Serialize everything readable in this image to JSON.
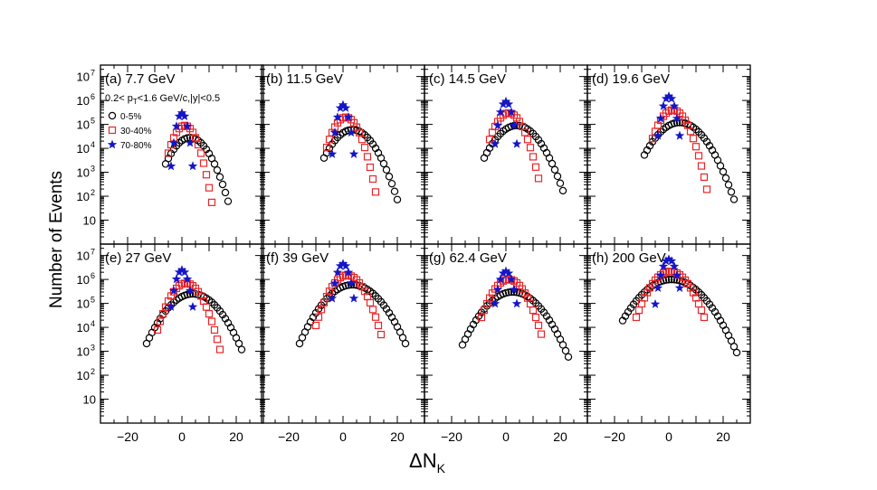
{
  "chart_data": {
    "type": "scatter",
    "xlabel_main": "ΔN",
    "xlabel_sub": "K",
    "ylabel": "Number of Events",
    "y_scale": "log",
    "ylim": [
      1,
      30000000
    ],
    "xlim": [
      -30,
      30
    ],
    "x_ticks": [
      "−20",
      "0",
      "20"
    ],
    "y_ticks_tens": "10",
    "y_ticks_exp": [
      "2",
      "3",
      "4",
      "5",
      "6",
      "7"
    ],
    "kinematic_cut_text": {
      "a": "0.2< p",
      "sub": "T",
      "b": "<1.6 GeV/c,|y|<0.5"
    },
    "legend": [
      {
        "label": "0-5%",
        "marker": "circle",
        "color": "#000000"
      },
      {
        "label": "30-40%",
        "marker": "square",
        "color": "#e8262a"
      },
      {
        "label": "70-80%",
        "marker": "star",
        "color": "#1515c8"
      }
    ],
    "panels": [
      {
        "label": "(a) 7.7 GeV",
        "series": [
          {
            "name": "0-5%",
            "mean": 3.0,
            "sigma": 4.0,
            "peak": 28000,
            "xmin": -6,
            "xmax": 17
          },
          {
            "name": "30-40%",
            "mean": 1.0,
            "sigma": 2.6,
            "peak": 90000,
            "xmin": -5,
            "xmax": 11
          },
          {
            "name": "70-80%",
            "mean": 0.0,
            "sigma": 1.25,
            "peak": 300000,
            "xmin": -4,
            "xmax": 4
          }
        ]
      },
      {
        "label": "(b) 11.5 GeV",
        "series": [
          {
            "name": "0-5%",
            "mean": 3.5,
            "sigma": 4.5,
            "peak": 60000,
            "xmin": -7,
            "xmax": 20
          },
          {
            "name": "30-40%",
            "mean": 1.0,
            "sigma": 2.9,
            "peak": 200000,
            "xmin": -6,
            "xmax": 12
          },
          {
            "name": "70-80%",
            "mean": 0.0,
            "sigma": 1.3,
            "peak": 650000,
            "xmin": -4,
            "xmax": 4
          }
        ]
      },
      {
        "label": "(c) 14.5 GeV",
        "series": [
          {
            "name": "0-5%",
            "mean": 4.0,
            "sigma": 4.8,
            "peak": 90000,
            "xmin": -8,
            "xmax": 21
          },
          {
            "name": "30-40%",
            "mean": 1.0,
            "sigma": 3.1,
            "peak": 300000,
            "xmin": -6,
            "xmax": 12
          },
          {
            "name": "70-80%",
            "mean": 0.0,
            "sigma": 1.4,
            "peak": 900000,
            "xmin": -4,
            "xmax": 4
          }
        ]
      },
      {
        "label": "(d) 19.6 GeV",
        "series": [
          {
            "name": "0-5%",
            "mean": 4.0,
            "sigma": 5.2,
            "peak": 120000,
            "xmin": -9,
            "xmax": 24
          },
          {
            "name": "30-40%",
            "mean": 1.5,
            "sigma": 3.2,
            "peak": 400000,
            "xmin": -6,
            "xmax": 14
          },
          {
            "name": "70-80%",
            "mean": 0.0,
            "sigma": 1.45,
            "peak": 1500000,
            "xmin": -4,
            "xmax": 4
          }
        ]
      },
      {
        "label": "(e) 27 GeV",
        "series": [
          {
            "name": "0-5%",
            "mean": 4.0,
            "sigma": 5.5,
            "peak": 250000,
            "xmin": -13,
            "xmax": 22
          },
          {
            "name": "30-40%",
            "mean": 1.5,
            "sigma": 3.5,
            "peak": 700000,
            "xmin": -9,
            "xmax": 14
          },
          {
            "name": "70-80%",
            "mean": 0.0,
            "sigma": 1.5,
            "peak": 2500000,
            "xmin": -4,
            "xmax": 4
          }
        ]
      },
      {
        "label": "(f)  39 GeV",
        "series": [
          {
            "name": "0-5%",
            "mean": 3.5,
            "sigma": 5.8,
            "peak": 600000,
            "xmin": -16,
            "xmax": 23
          },
          {
            "name": "30-40%",
            "mean": 1.5,
            "sigma": 3.7,
            "peak": 1500000,
            "xmin": -10,
            "xmax": 14
          },
          {
            "name": "70-80%",
            "mean": 0.0,
            "sigma": 1.55,
            "peak": 4500000,
            "xmin": -4,
            "xmax": 4
          }
        ]
      },
      {
        "label": "(g) 62.4 GeV",
        "series": [
          {
            "name": "0-5%",
            "mean": 2.5,
            "sigma": 5.8,
            "peak": 300000,
            "xmin": -16,
            "xmax": 23
          },
          {
            "name": "30-40%",
            "mean": 1.0,
            "sigma": 3.7,
            "peak": 1000000,
            "xmin": -9,
            "xmax": 13
          },
          {
            "name": "70-80%",
            "mean": 0.0,
            "sigma": 1.6,
            "peak": 2200000,
            "xmin": -4,
            "xmax": 4
          }
        ]
      },
      {
        "label": "(h) 200 GeV",
        "series": [
          {
            "name": "0-5%",
            "mean": 1.0,
            "sigma": 6.4,
            "peak": 1000000,
            "xmin": -17,
            "xmax": 25
          },
          {
            "name": "30-40%",
            "mean": 0.5,
            "sigma": 4.2,
            "peak": 2200000,
            "xmin": -12,
            "xmax": 13
          },
          {
            "name": "70-80%",
            "mean": 0.0,
            "sigma": 1.7,
            "peak": 7000000,
            "xmin": -5,
            "xmax": 4
          }
        ]
      }
    ]
  }
}
